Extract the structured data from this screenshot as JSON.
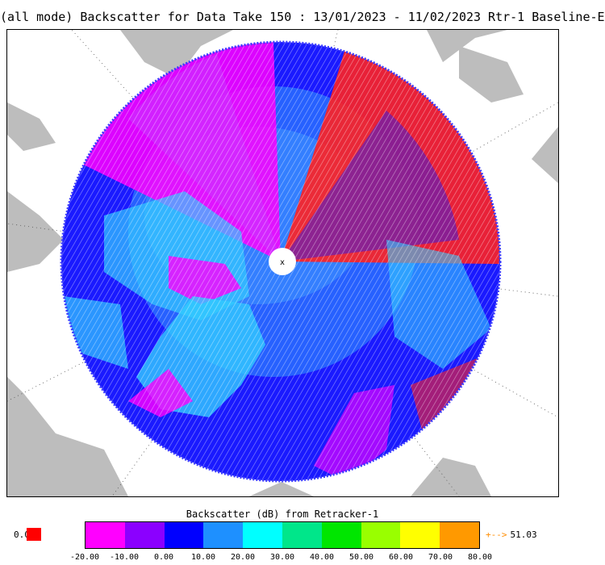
{
  "title": "(all mode) Backscatter for Data Take 150 : 13/01/2023 - 11/02/2023 Rtr-1 Baseline-E",
  "pole_marker": "x",
  "legend": {
    "title": "Backscatter (dB) from Retracker-1",
    "below_value": "0.0",
    "below_color": "#ff0000",
    "above_value": "51.03",
    "above_arrow": "+-->",
    "above_color": "#ff8c00",
    "ticks": [
      "-20.00",
      "-10.00",
      "0.00",
      "10.00",
      "20.00",
      "30.00",
      "40.00",
      "50.00",
      "60.00",
      "70.00",
      "80.00"
    ],
    "colors": [
      "#ff00ff",
      "#8b00ff",
      "#0000ff",
      "#1e90ff",
      "#00ffff",
      "#00e68a",
      "#00e600",
      "#99ff00",
      "#ffff00",
      "#ff9900"
    ]
  },
  "map": {
    "background_color": "#bdbdbd",
    "land_color": "#ffffff",
    "data_colors": [
      "#1a1aff",
      "#2a6fff",
      "#33ccff",
      "#ff00ff",
      "#cc33ff",
      "#ff2222"
    ]
  }
}
